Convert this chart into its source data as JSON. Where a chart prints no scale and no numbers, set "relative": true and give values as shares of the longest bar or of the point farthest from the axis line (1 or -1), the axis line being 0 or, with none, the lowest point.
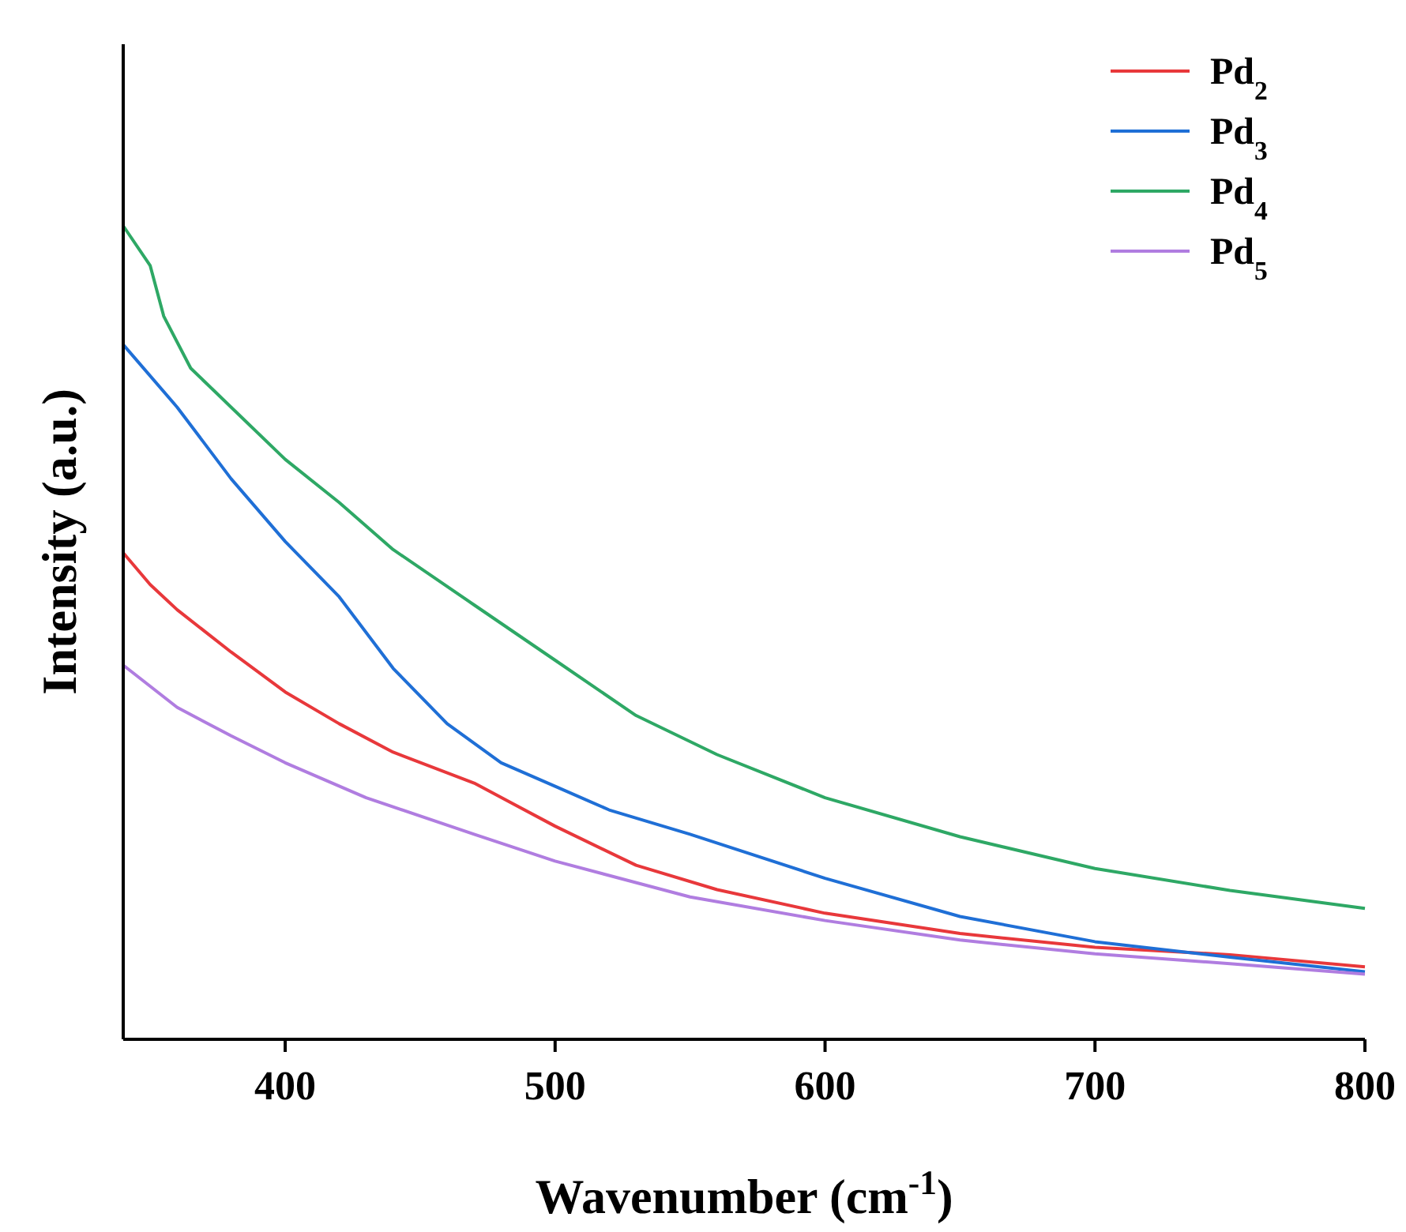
{
  "chart_data": {
    "type": "line",
    "xlabel": "Wavenumber (cm$^{-1}$)",
    "ylabel": "Intensity (a.u.)",
    "relative": true,
    "xlim": [
      340,
      800
    ],
    "xticks": [
      400,
      500,
      600,
      700,
      800
    ],
    "grid": false,
    "legend": "top right",
    "marker": "none",
    "line_style": "solid",
    "series": [
      {
        "name": "Pd$_{2}$",
        "color": "#e8383b",
        "x": [
          340,
          350,
          360,
          380,
          400,
          420,
          440,
          470,
          500,
          530,
          560,
          600,
          650,
          700,
          750,
          800
        ],
        "values": [
          0.598,
          0.559,
          0.528,
          0.476,
          0.427,
          0.388,
          0.353,
          0.315,
          0.262,
          0.214,
          0.184,
          0.155,
          0.13,
          0.113,
          0.104,
          0.089
        ]
      },
      {
        "name": "Pd$_{3}$",
        "color": "#1f6fd6",
        "x": [
          340,
          360,
          380,
          400,
          420,
          440,
          460,
          480,
          500,
          520,
          550,
          600,
          650,
          700,
          750,
          800
        ],
        "values": [
          0.854,
          0.777,
          0.689,
          0.612,
          0.544,
          0.456,
          0.388,
          0.34,
          0.311,
          0.282,
          0.252,
          0.198,
          0.151,
          0.12,
          0.101,
          0.083
        ]
      },
      {
        "name": "Pd$_{4}$",
        "color": "#2ea865",
        "x": [
          340,
          350,
          355,
          365,
          380,
          400,
          420,
          440,
          470,
          500,
          530,
          560,
          600,
          650,
          700,
          750,
          800
        ],
        "values": [
          1.0,
          0.951,
          0.889,
          0.825,
          0.777,
          0.713,
          0.66,
          0.602,
          0.534,
          0.466,
          0.398,
          0.35,
          0.297,
          0.249,
          0.21,
          0.183,
          0.161
        ]
      },
      {
        "name": "Pd$_{5}$",
        "color": "#b07de0",
        "x": [
          340,
          360,
          380,
          400,
          430,
          470,
          500,
          550,
          600,
          650,
          700,
          750,
          800
        ],
        "values": [
          0.46,
          0.408,
          0.373,
          0.34,
          0.297,
          0.252,
          0.219,
          0.175,
          0.146,
          0.122,
          0.105,
          0.093,
          0.08
        ]
      }
    ]
  }
}
